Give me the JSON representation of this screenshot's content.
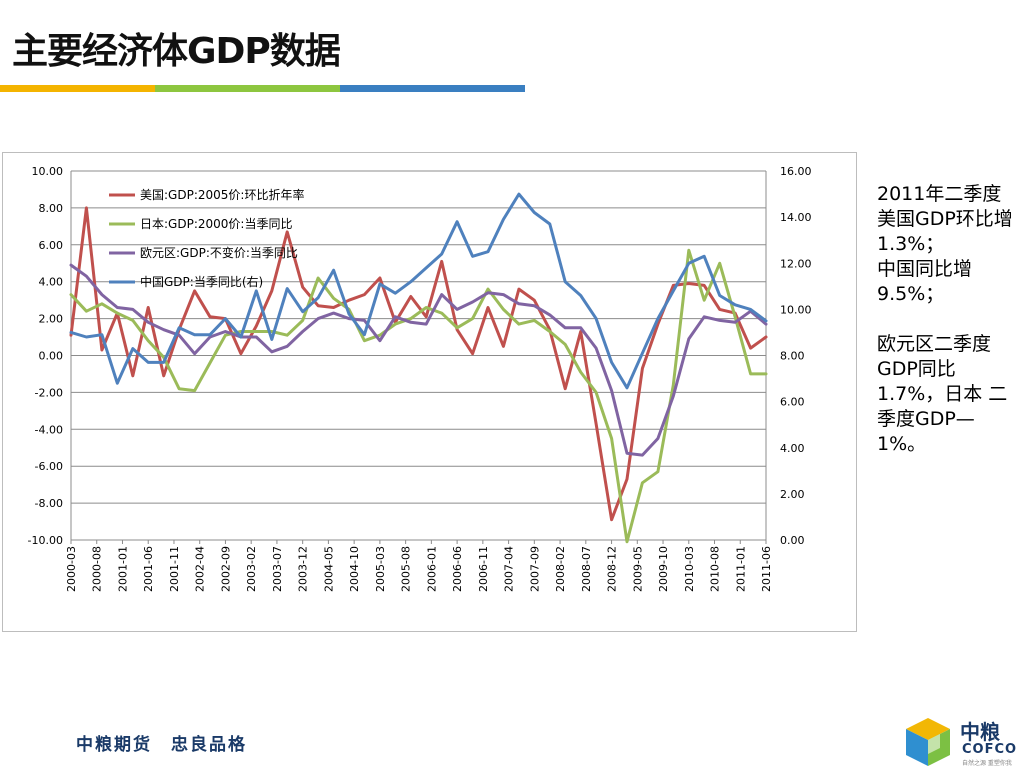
{
  "slide": {
    "title": "主要经济体GDP数据",
    "bar_colors": [
      "#f4b400",
      "#8dc63f",
      "#3a7fc1"
    ],
    "note": "2011年二季度美国GDP环比增1.3%；\n中国同比增9.5%；\n\n欧元区二季度GDP同比1.7%，日本 二季度GDP—1%。",
    "footer_slogan": "中粮期货　忠良品格",
    "logo": {
      "cn": "中粮",
      "en": "COFCO",
      "tagline": "自然之源 重塑你我"
    }
  },
  "chart_data": {
    "type": "line",
    "x": [
      "2000-03",
      "2000-06",
      "2000-09",
      "2000-12",
      "2001-03",
      "2001-06",
      "2001-09",
      "2001-12",
      "2002-03",
      "2002-06",
      "2002-09",
      "2002-12",
      "2003-03",
      "2003-06",
      "2003-09",
      "2003-12",
      "2004-03",
      "2004-06",
      "2004-09",
      "2004-12",
      "2005-03",
      "2005-06",
      "2005-09",
      "2005-12",
      "2006-03",
      "2006-06",
      "2006-09",
      "2006-12",
      "2007-03",
      "2007-06",
      "2007-09",
      "2007-12",
      "2008-03",
      "2008-06",
      "2008-09",
      "2008-12",
      "2009-03",
      "2009-06",
      "2009-09",
      "2009-12",
      "2010-03",
      "2010-06",
      "2010-09",
      "2010-12",
      "2011-03",
      "2011-06"
    ],
    "x_tick_labels": [
      "2000-03",
      "2000-08",
      "2001-01",
      "2001-06",
      "2001-11",
      "2002-04",
      "2002-09",
      "2003-02",
      "2003-07",
      "2003-12",
      "2004-05",
      "2004-10",
      "2005-03",
      "2005-08",
      "2006-01",
      "2006-06",
      "2006-11",
      "2007-04",
      "2007-09",
      "2008-02",
      "2008-07",
      "2008-12",
      "2009-05",
      "2009-10",
      "2010-03",
      "2010-08",
      "2011-01",
      "2011-06"
    ],
    "y_left": {
      "ylim": [
        -10,
        10
      ],
      "ticks": [
        "10.00",
        "8.00",
        "6.00",
        "4.00",
        "2.00",
        "0.00",
        "-2.00",
        "-4.00",
        "-6.00",
        "-8.00",
        "-10.00"
      ]
    },
    "y_right": {
      "ylim": [
        0,
        16
      ],
      "ticks": [
        "16.00",
        "14.00",
        "12.00",
        "10.00",
        "8.00",
        "6.00",
        "4.00",
        "2.00",
        "0.00"
      ]
    },
    "grid": true,
    "legend_position": "top-left",
    "series": [
      {
        "name": "美国:GDP:2005价:环比折年率",
        "axis": "left",
        "color": "#c0504d",
        "values": [
          1.1,
          8.0,
          0.3,
          2.3,
          -1.1,
          2.6,
          -1.1,
          1.4,
          3.5,
          2.1,
          2.0,
          0.1,
          1.6,
          3.5,
          6.7,
          3.7,
          2.7,
          2.6,
          3.0,
          3.3,
          4.2,
          1.8,
          3.2,
          2.1,
          5.1,
          1.4,
          0.1,
          2.6,
          0.5,
          3.6,
          3.0,
          1.4,
          -1.8,
          1.3,
          -3.7,
          -8.9,
          -6.7,
          -0.7,
          1.7,
          3.8,
          3.9,
          3.8,
          2.5,
          2.3,
          0.4,
          1.0
        ]
      },
      {
        "name": "日本:GDP:2000价:当季同比",
        "axis": "left",
        "color": "#9bbb59",
        "values": [
          3.3,
          2.4,
          2.8,
          2.3,
          1.9,
          0.8,
          -0.1,
          -1.8,
          -1.9,
          -0.4,
          1.1,
          1.3,
          1.3,
          1.3,
          1.1,
          1.9,
          4.2,
          3.1,
          2.5,
          0.8,
          1.1,
          1.7,
          2.0,
          2.6,
          2.3,
          1.5,
          2.0,
          3.6,
          2.5,
          1.7,
          1.9,
          1.3,
          0.6,
          -0.9,
          -2.0,
          -4.5,
          -10.1,
          -6.9,
          -6.3,
          -1.6,
          5.7,
          3.0,
          5.0,
          2.1,
          -1.0,
          -1.0
        ]
      },
      {
        "name": "欧元区:GDP:不变价:当季同比",
        "axis": "left",
        "color": "#8064a2",
        "values": [
          4.9,
          4.3,
          3.3,
          2.6,
          2.5,
          1.8,
          1.4,
          1.1,
          0.1,
          1.0,
          1.3,
          1.0,
          1.0,
          0.2,
          0.5,
          1.3,
          2.0,
          2.3,
          2.0,
          1.9,
          0.8,
          2.1,
          1.8,
          1.7,
          3.3,
          2.5,
          2.9,
          3.4,
          3.3,
          2.8,
          2.7,
          2.2,
          1.5,
          1.5,
          0.4,
          -1.9,
          -5.3,
          -5.4,
          -4.5,
          -2.2,
          0.9,
          2.1,
          1.9,
          1.8,
          2.4,
          1.7
        ]
      },
      {
        "name": "中国GDP:当季同比(右)",
        "axis": "right",
        "color": "#4f81bd",
        "values": [
          9.0,
          8.8,
          8.9,
          6.8,
          8.3,
          7.7,
          7.7,
          9.2,
          8.9,
          8.9,
          9.6,
          8.8,
          10.8,
          8.7,
          10.9,
          9.9,
          10.5,
          11.7,
          9.8,
          8.9,
          11.1,
          10.7,
          11.2,
          11.8,
          12.4,
          13.8,
          12.3,
          12.5,
          13.9,
          15.0,
          14.2,
          13.7,
          11.2,
          10.6,
          9.6,
          7.7,
          6.6,
          8.1,
          9.6,
          10.8,
          12.0,
          12.3,
          10.6,
          10.2,
          10.0,
          9.5
        ]
      }
    ]
  }
}
